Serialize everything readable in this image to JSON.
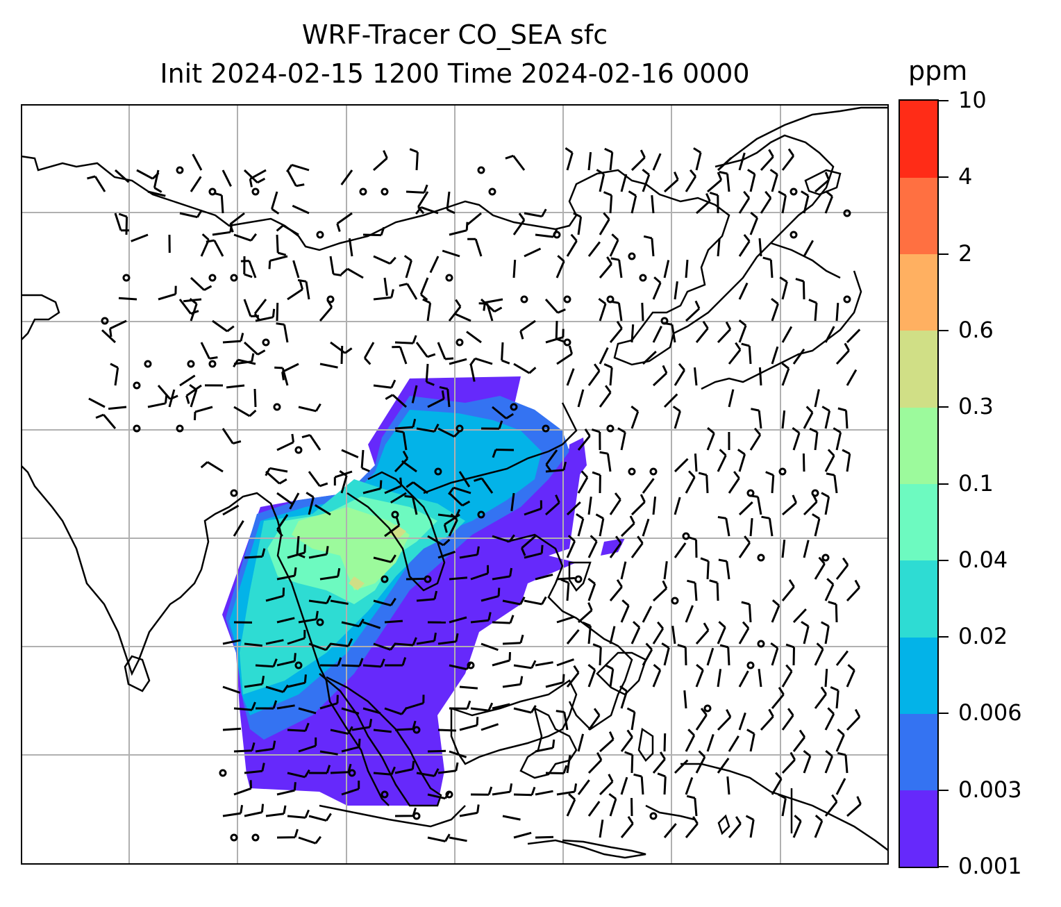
{
  "figure": {
    "title_line1": "WRF-Tracer CO_SEA sfc",
    "title_line2": "Init 2024-02-15 1200 Time 2024-02-16 0000"
  },
  "colorbar": {
    "unit": "ppm",
    "levels": [
      "0.001",
      "0.003",
      "0.006",
      "0.02",
      "0.04",
      "0.1",
      "0.3",
      "0.6",
      "2",
      "4",
      "10"
    ],
    "colors": [
      "#6629fb",
      "#3473f2",
      "#03b3e8",
      "#2edcd3",
      "#6dfac0",
      "#9cfa9c",
      "#d0df86",
      "#ffb061",
      "#ff7041",
      "#ff2c17"
    ]
  },
  "map": {
    "field": "CO_SEA surface tracer concentration",
    "overlay": "wind barbs",
    "graticule": true,
    "coastline_color": "#000000",
    "gridline_color": "#b0b0b0"
  }
}
